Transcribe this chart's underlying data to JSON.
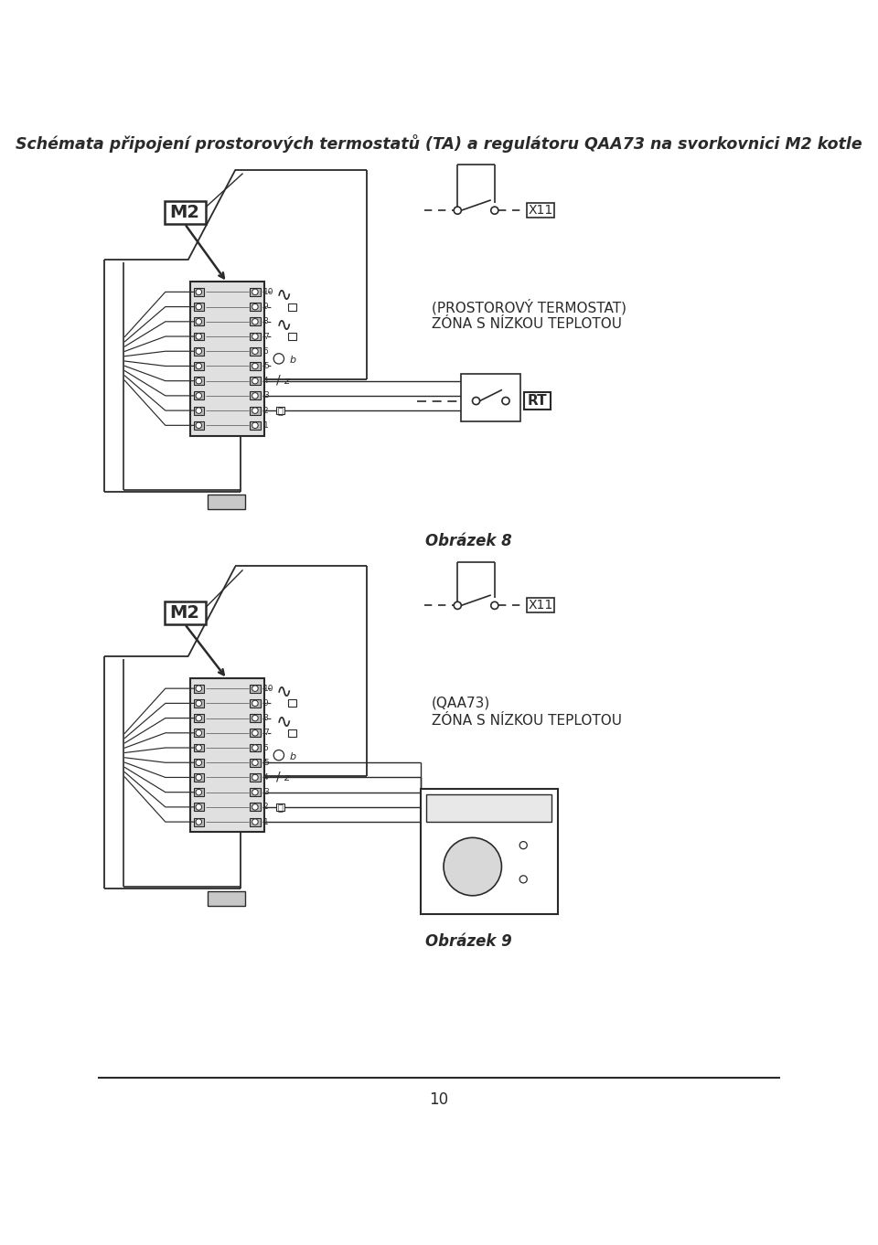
{
  "title": "Schémata připojení prostorových termostatů (TA) a regulátoru QAA73 na svorkovnici M2 kotle",
  "page_number": "10",
  "fig1_caption1": "(PROSTOROVÝ TERMOSTAT)",
  "fig1_caption2": "ZÓNA S NÍZKOU TEPLOTOU",
  "fig1_obr": "Obrázek 8",
  "fig1_M2": "M2",
  "fig1_X11": "X11",
  "fig1_RT": "RT",
  "fig2_caption1": "(QAA73)",
  "fig2_caption2": "ZÓNA S NÍZKOU TEPLOTOU",
  "fig2_obr": "Obrázek 9",
  "fig2_M2": "M2",
  "fig2_X11": "X11",
  "bg": "#ffffff",
  "lc": "#2a2a2a",
  "gray_tb": "#e0e0e0",
  "gray_term": "#b8b8b8"
}
